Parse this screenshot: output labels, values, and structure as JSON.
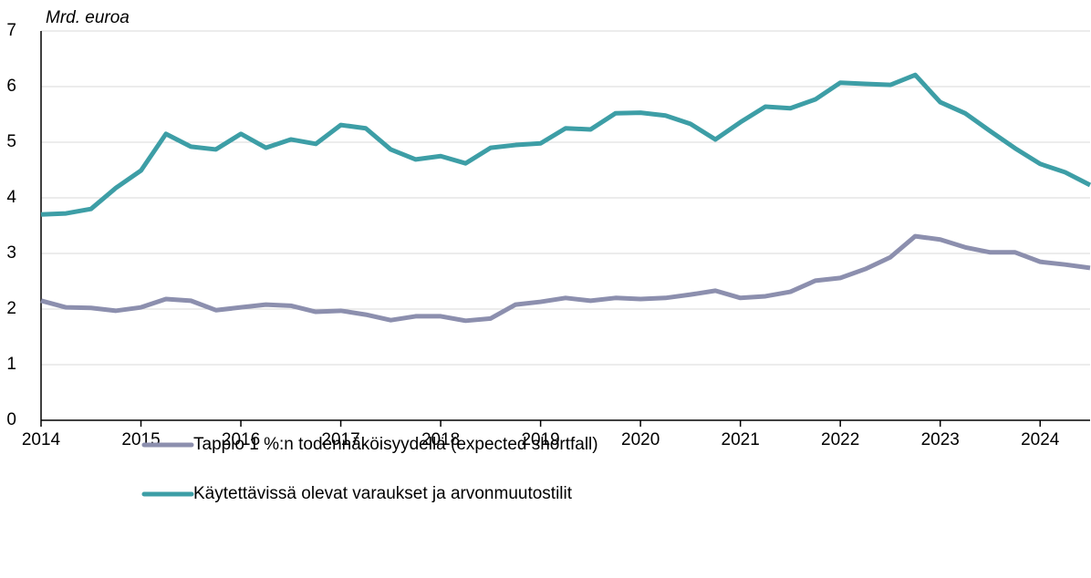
{
  "chart_data": {
    "type": "line",
    "y_axis_label": "Mrd. euroa",
    "x": [
      2014,
      2014.25,
      2014.5,
      2014.75,
      2015,
      2015.25,
      2015.5,
      2015.75,
      2016,
      2016.25,
      2016.5,
      2016.75,
      2017,
      2017.25,
      2017.5,
      2017.75,
      2018,
      2018.25,
      2018.5,
      2018.75,
      2019,
      2019.25,
      2019.5,
      2019.75,
      2020,
      2020.25,
      2020.5,
      2020.75,
      2021,
      2021.25,
      2021.5,
      2021.75,
      2022,
      2022.25,
      2022.5,
      2022.75,
      2023,
      2023.25,
      2023.5,
      2023.75,
      2024,
      2024.25,
      2024.5
    ],
    "series": [
      {
        "name": "Tappio 1 %:n todennäköisyydellä  (expected shortfall)",
        "color": "#8c8fae",
        "values": [
          2.15,
          2.03,
          2.02,
          1.97,
          2.03,
          2.18,
          2.15,
          1.98,
          2.03,
          2.08,
          2.06,
          1.95,
          1.97,
          1.9,
          1.8,
          1.87,
          1.87,
          1.79,
          1.83,
          2.08,
          2.13,
          2.2,
          2.15,
          2.2,
          2.18,
          2.2,
          2.26,
          2.33,
          2.2,
          2.23,
          2.31,
          2.51,
          2.56,
          2.72,
          2.93,
          3.31,
          3.25,
          3.11,
          3.02,
          3.02,
          2.85,
          2.8,
          2.74
        ]
      },
      {
        "name": "Käytettävissä olevat varaukset ja arvonmuutostilit",
        "color": "#3d9ea6",
        "values": [
          3.7,
          3.72,
          3.8,
          4.18,
          4.49,
          5.15,
          4.92,
          4.87,
          5.15,
          4.9,
          5.05,
          4.97,
          5.31,
          5.25,
          4.87,
          4.69,
          4.75,
          4.62,
          4.9,
          4.95,
          4.98,
          5.25,
          5.23,
          5.52,
          5.53,
          5.48,
          5.33,
          5.05,
          5.36,
          5.64,
          5.61,
          5.77,
          6.07,
          6.05,
          6.03,
          6.21,
          5.72,
          5.52,
          5.2,
          4.89,
          4.61,
          4.46,
          4.23
        ]
      }
    ],
    "xlim": [
      2014,
      2024.5
    ],
    "xticks": [
      2014,
      2015,
      2016,
      2017,
      2018,
      2019,
      2020,
      2021,
      2022,
      2023,
      2024
    ],
    "ylim": [
      0,
      7
    ],
    "yticks": [
      0,
      1,
      2,
      3,
      4,
      5,
      6,
      7
    ],
    "grid": true
  }
}
